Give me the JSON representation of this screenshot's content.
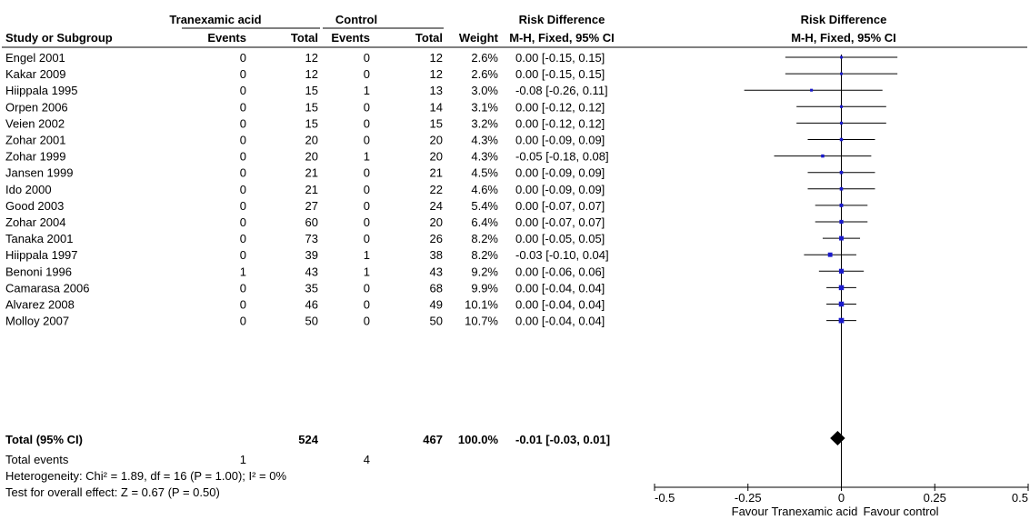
{
  "chart_data": {
    "type": "forest",
    "headers": {
      "group1": "Tranexamic acid",
      "group2": "Control",
      "rd_title": "Risk Difference",
      "study": "Study or Subgroup",
      "events": "Events",
      "total": "Total",
      "weight": "Weight",
      "method": "M-H, Fixed, 95% CI",
      "plot_title": "Risk Difference",
      "plot_method": "M-H, Fixed, 95% CI"
    },
    "studies": [
      {
        "name": "Engel 2001",
        "e1": "0",
        "t1": "12",
        "e2": "0",
        "t2": "12",
        "weight": "2.6%",
        "ci": "0.00 [-0.15, 0.15]",
        "rd": 0.0,
        "lo": -0.15,
        "hi": 0.15
      },
      {
        "name": "Kakar 2009",
        "e1": "0",
        "t1": "12",
        "e2": "0",
        "t2": "12",
        "weight": "2.6%",
        "ci": "0.00 [-0.15, 0.15]",
        "rd": 0.0,
        "lo": -0.15,
        "hi": 0.15
      },
      {
        "name": "Hiippala 1995",
        "e1": "0",
        "t1": "15",
        "e2": "1",
        "t2": "13",
        "weight": "3.0%",
        "ci": "-0.08 [-0.26, 0.11]",
        "rd": -0.08,
        "lo": -0.26,
        "hi": 0.11
      },
      {
        "name": "Orpen 2006",
        "e1": "0",
        "t1": "15",
        "e2": "0",
        "t2": "14",
        "weight": "3.1%",
        "ci": "0.00 [-0.12, 0.12]",
        "rd": 0.0,
        "lo": -0.12,
        "hi": 0.12
      },
      {
        "name": "Veien 2002",
        "e1": "0",
        "t1": "15",
        "e2": "0",
        "t2": "15",
        "weight": "3.2%",
        "ci": "0.00 [-0.12, 0.12]",
        "rd": 0.0,
        "lo": -0.12,
        "hi": 0.12
      },
      {
        "name": "Zohar 2001",
        "e1": "0",
        "t1": "20",
        "e2": "0",
        "t2": "20",
        "weight": "4.3%",
        "ci": "0.00 [-0.09, 0.09]",
        "rd": 0.0,
        "lo": -0.09,
        "hi": 0.09
      },
      {
        "name": "Zohar 1999",
        "e1": "0",
        "t1": "20",
        "e2": "1",
        "t2": "20",
        "weight": "4.3%",
        "ci": "-0.05 [-0.18, 0.08]",
        "rd": -0.05,
        "lo": -0.18,
        "hi": 0.08
      },
      {
        "name": "Jansen 1999",
        "e1": "0",
        "t1": "21",
        "e2": "0",
        "t2": "21",
        "weight": "4.5%",
        "ci": "0.00 [-0.09, 0.09]",
        "rd": 0.0,
        "lo": -0.09,
        "hi": 0.09
      },
      {
        "name": "Ido 2000",
        "e1": "0",
        "t1": "21",
        "e2": "0",
        "t2": "22",
        "weight": "4.6%",
        "ci": "0.00 [-0.09, 0.09]",
        "rd": 0.0,
        "lo": -0.09,
        "hi": 0.09
      },
      {
        "name": "Good 2003",
        "e1": "0",
        "t1": "27",
        "e2": "0",
        "t2": "24",
        "weight": "5.4%",
        "ci": "0.00 [-0.07, 0.07]",
        "rd": 0.0,
        "lo": -0.07,
        "hi": 0.07
      },
      {
        "name": "Zohar 2004",
        "e1": "0",
        "t1": "60",
        "e2": "0",
        "t2": "20",
        "weight": "6.4%",
        "ci": "0.00 [-0.07, 0.07]",
        "rd": 0.0,
        "lo": -0.07,
        "hi": 0.07
      },
      {
        "name": "Tanaka 2001",
        "e1": "0",
        "t1": "73",
        "e2": "0",
        "t2": "26",
        "weight": "8.2%",
        "ci": "0.00 [-0.05, 0.05]",
        "rd": 0.0,
        "lo": -0.05,
        "hi": 0.05
      },
      {
        "name": "Hiippala 1997",
        "e1": "0",
        "t1": "39",
        "e2": "1",
        "t2": "38",
        "weight": "8.2%",
        "ci": "-0.03 [-0.10, 0.04]",
        "rd": -0.03,
        "lo": -0.1,
        "hi": 0.04
      },
      {
        "name": "Benoni 1996",
        "e1": "1",
        "t1": "43",
        "e2": "1",
        "t2": "43",
        "weight": "9.2%",
        "ci": "0.00 [-0.06, 0.06]",
        "rd": 0.0,
        "lo": -0.06,
        "hi": 0.06
      },
      {
        "name": "Camarasa 2006",
        "e1": "0",
        "t1": "35",
        "e2": "0",
        "t2": "68",
        "weight": "9.9%",
        "ci": "0.00 [-0.04, 0.04]",
        "rd": 0.0,
        "lo": -0.04,
        "hi": 0.04
      },
      {
        "name": "Alvarez 2008",
        "e1": "0",
        "t1": "46",
        "e2": "0",
        "t2": "49",
        "weight": "10.1%",
        "ci": "0.00 [-0.04, 0.04]",
        "rd": 0.0,
        "lo": -0.04,
        "hi": 0.04
      },
      {
        "name": "Molloy 2007",
        "e1": "0",
        "t1": "50",
        "e2": "0",
        "t2": "50",
        "weight": "10.7%",
        "ci": "0.00 [-0.04, 0.04]",
        "rd": 0.0,
        "lo": -0.04,
        "hi": 0.04
      }
    ],
    "total": {
      "name": "Total (95% CI)",
      "t1": "524",
      "t2": "467",
      "weight": "100.0%",
      "ci": "-0.01 [-0.03, 0.01]",
      "rd": -0.01,
      "lo": -0.03,
      "hi": 0.01
    },
    "total_events": {
      "label": "Total events",
      "e1": "1",
      "e2": "4"
    },
    "heterogeneity": "Heterogeneity: Chi² = 1.89, df = 16 (P = 1.00); I² = 0%",
    "overall_effect": "Test for overall effect: Z = 0.67 (P = 0.50)",
    "axis": {
      "xlim": [
        -0.5,
        0.5
      ],
      "ticks": [
        -0.5,
        -0.25,
        0,
        0.25,
        0.5
      ],
      "tick_labels": [
        "-0.5",
        "-0.25",
        "0",
        "0.25",
        "0.5"
      ],
      "favour_left": "Favour Tranexamic acid",
      "favour_right": "Favour control"
    },
    "colors": {
      "marker": "#1a1acc",
      "text": "#000000",
      "line": "#000000"
    }
  }
}
